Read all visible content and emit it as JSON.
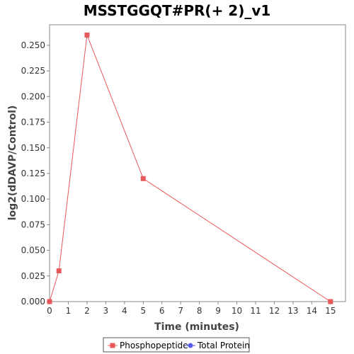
{
  "chart_data": {
    "type": "line",
    "title": "MSSTGGQT#PR(+ 2)_v1",
    "xlabel": "Time (minutes)",
    "ylabel": "log2(dDAVP/Control)",
    "xlim": [
      0,
      15.8
    ],
    "ylim": [
      0,
      0.27
    ],
    "xticks": [
      0,
      1,
      2,
      3,
      4,
      5,
      6,
      7,
      8,
      9,
      10,
      11,
      12,
      13,
      14,
      15
    ],
    "yticks": [
      0.0,
      0.025,
      0.05,
      0.075,
      0.1,
      0.125,
      0.15,
      0.175,
      0.2,
      0.225,
      0.25
    ],
    "ytick_labels": [
      "0.000",
      "0.025",
      "0.050",
      "0.075",
      "0.100",
      "0.125",
      "0.150",
      "0.175",
      "0.200",
      "0.225",
      "0.250"
    ],
    "grid": false,
    "legend_position": "bottom",
    "series": [
      {
        "name": "Phosphopeptide",
        "color": "#e8585a",
        "marker": "square",
        "x": [
          0,
          0.5,
          2,
          5,
          15
        ],
        "y": [
          0.0,
          0.03,
          0.26,
          0.12,
          0.0
        ]
      },
      {
        "name": "Total Protein",
        "color": "#5a5aeb",
        "marker": "circle",
        "x": [],
        "y": []
      }
    ]
  }
}
